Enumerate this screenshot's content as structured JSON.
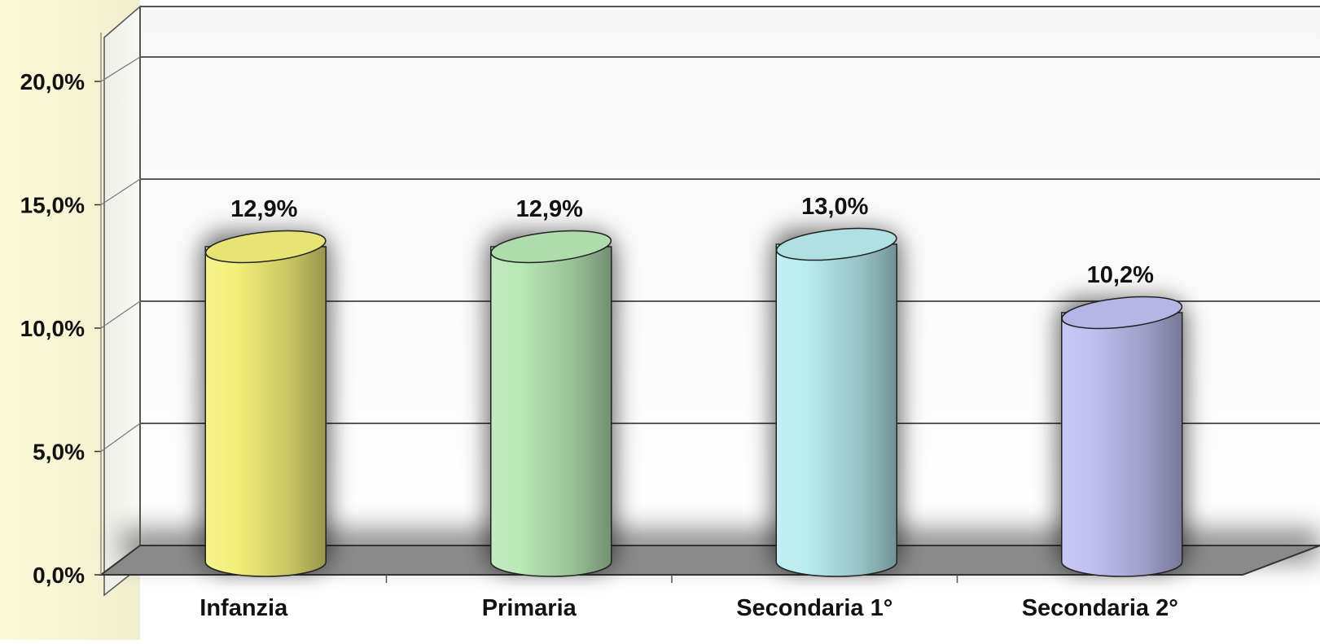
{
  "chart_data": {
    "type": "bar",
    "style": "3d-cylinder",
    "categories": [
      "Infanzia",
      "Primaria",
      "Secondaria 1°",
      "Secondaria 2°"
    ],
    "values": [
      12.9,
      12.9,
      13.0,
      10.2
    ],
    "data_labels": [
      "12,9%",
      "12,9%",
      "13,0%",
      "10,2%"
    ],
    "colors": [
      "#f4f07a",
      "#b9e8b6",
      "#b8ecf0",
      "#c0c0f2"
    ],
    "ylim": [
      0,
      20
    ],
    "yticks": [
      {
        "value": 0,
        "label": "0,0%"
      },
      {
        "value": 5,
        "label": "5,0%"
      },
      {
        "value": 10,
        "label": "10,0%"
      },
      {
        "value": 15,
        "label": "15,0%"
      },
      {
        "value": 20,
        "label": "20,0%"
      }
    ],
    "grid": true,
    "title": "",
    "xlabel": "",
    "ylabel": ""
  }
}
